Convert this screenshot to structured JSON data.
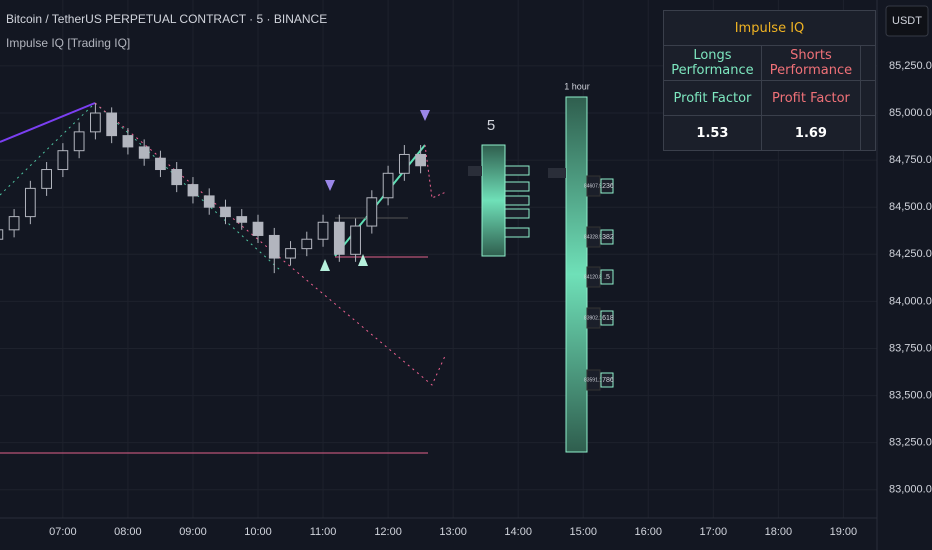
{
  "header": {
    "title": "Bitcoin / TetherUS PERPETUAL CONTRACT · 5 · BINANCE",
    "indicator": "Impulse IQ [Trading IQ]",
    "currency": "USDT"
  },
  "table": {
    "title": "Impulse IQ",
    "rows": [
      [
        "Longs Performance",
        "Shorts Performance"
      ],
      [
        "Profit Factor",
        "Profit Factor"
      ],
      [
        "1.53",
        "1.69"
      ]
    ]
  },
  "panels": [
    {
      "title": "5"
    },
    {
      "title": "1 hour",
      "levels": [
        {
          "price": "84607.9",
          "ratio": ".236"
        },
        {
          "price": "84328.5",
          "ratio": ".382"
        },
        {
          "price": "84120.8",
          "ratio": ".5"
        },
        {
          "price": "83902.1",
          "ratio": ".618"
        },
        {
          "price": "83591.1",
          "ratio": ".786"
        }
      ]
    }
  ],
  "chart_data": {
    "type": "candlestick",
    "x": [
      360,
      375,
      390,
      405,
      420,
      435,
      450,
      465,
      480,
      495,
      510,
      525,
      540,
      555,
      570,
      585,
      600,
      615,
      630,
      645,
      660,
      675,
      690,
      705,
      720,
      735,
      750
    ],
    "open": [
      84330,
      84380,
      84450,
      84600,
      84700,
      84800,
      84900,
      85000,
      84880,
      84820,
      84760,
      84700,
      84620,
      84560,
      84500,
      84450,
      84420,
      84350,
      84230,
      84280,
      84330,
      84420,
      84250,
      84400,
      84550,
      84680,
      84780
    ],
    "high": [
      84420,
      84490,
      84640,
      84740,
      84840,
      84950,
      85050,
      85030,
      84920,
      84860,
      84800,
      84740,
      84660,
      84600,
      84540,
      84490,
      84460,
      84390,
      84320,
      84370,
      84460,
      84460,
      84440,
      84590,
      84720,
      84830,
      84830
    ],
    "low": [
      84300,
      84340,
      84410,
      84560,
      84660,
      84760,
      84860,
      84840,
      84780,
      84720,
      84660,
      84580,
      84520,
      84460,
      84410,
      84380,
      84310,
      84150,
      84190,
      84240,
      84290,
      84210,
      84210,
      84360,
      84510,
      84640,
      84680
    ],
    "close": [
      84380,
      84450,
      84600,
      84700,
      84800,
      84900,
      85000,
      84880,
      84820,
      84760,
      84700,
      84620,
      84560,
      84500,
      84450,
      84420,
      84350,
      84230,
      84280,
      84330,
      84420,
      84250,
      84400,
      84550,
      84680,
      84780,
      84720
    ],
    "up_color": "#131722",
    "down_color": "#b2b5be",
    "wick_color": "#b2b5be",
    "xlim": [
      362,
      1171
    ],
    "xticks": [
      {
        "value": 420,
        "label": "07:00"
      },
      {
        "value": 480,
        "label": "08:00"
      },
      {
        "value": 540,
        "label": "09:00"
      },
      {
        "value": 600,
        "label": "10:00"
      },
      {
        "value": 660,
        "label": "11:00"
      },
      {
        "value": 720,
        "label": "12:00"
      },
      {
        "value": 780,
        "label": "13:00"
      },
      {
        "value": 840,
        "label": "14:00"
      },
      {
        "value": 900,
        "label": "15:00"
      },
      {
        "value": 960,
        "label": "16:00"
      },
      {
        "value": 1020,
        "label": "17:00"
      },
      {
        "value": 1080,
        "label": "18:00"
      },
      {
        "value": 1140,
        "label": "19:00"
      }
    ],
    "ylim": [
      82850,
      85600
    ],
    "yticks": [
      {
        "value": 83000,
        "label": "83,000.0"
      },
      {
        "value": 83250,
        "label": "83,250.0"
      },
      {
        "value": 83500,
        "label": "83,500.0"
      },
      {
        "value": 83750,
        "label": "83,750.0"
      },
      {
        "value": 84000,
        "label": "84,000.0"
      },
      {
        "value": 84250,
        "label": "84,250.0"
      },
      {
        "value": 84500,
        "label": "84,500.0"
      },
      {
        "value": 84750,
        "label": "84,750.0"
      },
      {
        "value": 85000,
        "label": "85,000.0"
      },
      {
        "value": 85250,
        "label": "85,250.0"
      }
    ],
    "grid": true
  }
}
